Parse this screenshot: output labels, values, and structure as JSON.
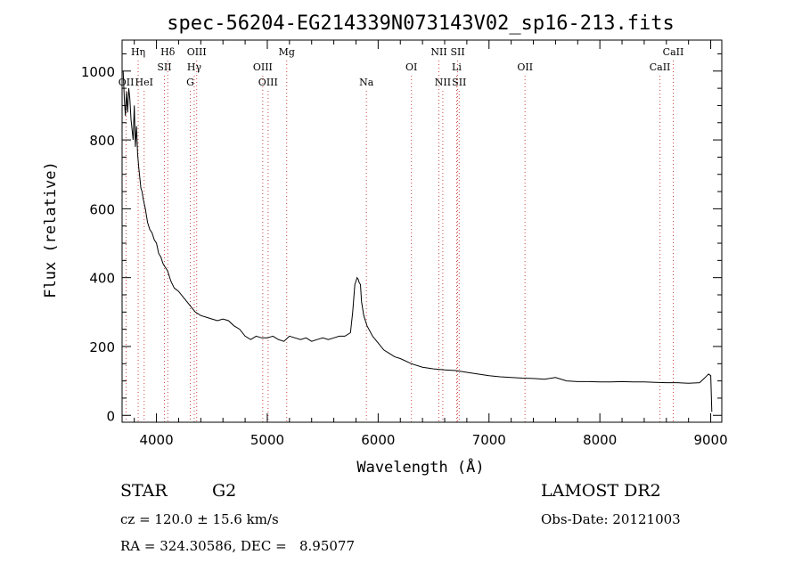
{
  "chart_data": {
    "type": "line",
    "title": "spec-56204-EG214339N073143V02_sp16-213.fits",
    "xlabel": "Wavelength (Å)",
    "ylabel": "Flux (relative)",
    "xlim": [
      3690,
      9100
    ],
    "ylim": [
      -20,
      1090
    ],
    "xticks": [
      4000,
      5000,
      6000,
      7000,
      8000,
      9000
    ],
    "yticks": [
      0,
      200,
      400,
      600,
      800,
      1000
    ],
    "grid": false,
    "series": [
      {
        "x": [
          3700,
          3710,
          3720,
          3730,
          3740,
          3750,
          3760,
          3770,
          3780,
          3790,
          3800,
          3810,
          3820,
          3830,
          3840,
          3850,
          3860,
          3870,
          3880,
          3900,
          3920,
          3940,
          3960,
          3980,
          4000,
          4020,
          4040,
          4060,
          4080,
          4100,
          4130,
          4160,
          4200,
          4250,
          4300,
          4350,
          4400,
          4450,
          4500,
          4550,
          4600,
          4650,
          4700,
          4750,
          4800,
          4850,
          4900,
          4950,
          5000,
          5050,
          5100,
          5150,
          5200,
          5250,
          5300,
          5350,
          5400,
          5450,
          5500,
          5550,
          5600,
          5650,
          5700,
          5750,
          5770,
          5790,
          5800,
          5810,
          5820,
          5830,
          5840,
          5850,
          5870,
          5900,
          5950,
          6000,
          6050,
          6100,
          6150,
          6200,
          6300,
          6400,
          6500,
          6600,
          6700,
          6800,
          6900,
          7000,
          7100,
          7200,
          7300,
          7400,
          7500,
          7600,
          7700,
          7800,
          7900,
          8000,
          8100,
          8200,
          8300,
          8400,
          8500,
          8600,
          8700,
          8800,
          8900,
          8950,
          8980,
          9000,
          9010
        ],
        "y": [
          1000,
          920,
          870,
          940,
          880,
          950,
          920,
          860,
          830,
          800,
          900,
          780,
          840,
          760,
          720,
          690,
          660,
          650,
          630,
          600,
          560,
          540,
          530,
          510,
          500,
          470,
          460,
          440,
          430,
          420,
          390,
          370,
          360,
          340,
          320,
          300,
          290,
          285,
          280,
          275,
          280,
          275,
          260,
          250,
          230,
          220,
          230,
          225,
          225,
          230,
          220,
          215,
          230,
          225,
          220,
          225,
          215,
          220,
          225,
          220,
          225,
          230,
          230,
          240,
          300,
          380,
          390,
          400,
          395,
          385,
          380,
          330,
          290,
          260,
          230,
          210,
          190,
          180,
          170,
          165,
          150,
          140,
          135,
          132,
          130,
          125,
          120,
          115,
          112,
          110,
          108,
          107,
          105,
          110,
          100,
          98,
          98,
          97,
          97,
          98,
          97,
          97,
          96,
          95,
          95,
          93,
          95,
          110,
          120,
          115,
          10
        ]
      }
    ],
    "line_markers": [
      {
        "label": "OII",
        "x": 3727,
        "row": 2
      },
      {
        "label": "Hη",
        "x": 3835,
        "row": 0
      },
      {
        "label": "HeI",
        "x": 3889,
        "row": 2
      },
      {
        "label": "Hδ",
        "x": 4102,
        "row": 0
      },
      {
        "label": "SII",
        "x": 4072,
        "row": 1
      },
      {
        "label": "OIII",
        "x": 4363,
        "row": 0
      },
      {
        "label": "Hγ",
        "x": 4341,
        "row": 1
      },
      {
        "label": "G",
        "x": 4305,
        "row": 2
      },
      {
        "label": "OIII",
        "x": 4959,
        "row": 1
      },
      {
        "label": "OIII",
        "x": 5007,
        "row": 2
      },
      {
        "label": "Mg",
        "x": 5175,
        "row": 0
      },
      {
        "label": "Na",
        "x": 5894,
        "row": 2
      },
      {
        "label": "OI",
        "x": 6300,
        "row": 1
      },
      {
        "label": "NII",
        "x": 6548,
        "row": 0
      },
      {
        "label": "NII",
        "x": 6583,
        "row": 2
      },
      {
        "label": "SII",
        "x": 6717,
        "row": 0
      },
      {
        "label": "Li",
        "x": 6708,
        "row": 1
      },
      {
        "label": "SII",
        "x": 6731,
        "row": 2
      },
      {
        "label": "OII",
        "x": 7325,
        "row": 1
      },
      {
        "label": "CaII",
        "x": 8542,
        "row": 1
      },
      {
        "label": "CaII",
        "x": 8662,
        "row": 0
      }
    ]
  },
  "info": {
    "object_class": "STAR",
    "subclass": "G2",
    "survey": "LAMOST DR2",
    "cz": "cz = 120.0 ± 15.6 km/s",
    "obs_date": "Obs-Date: 20121003",
    "radec": "RA = 324.30586, DEC =   8.95077"
  }
}
